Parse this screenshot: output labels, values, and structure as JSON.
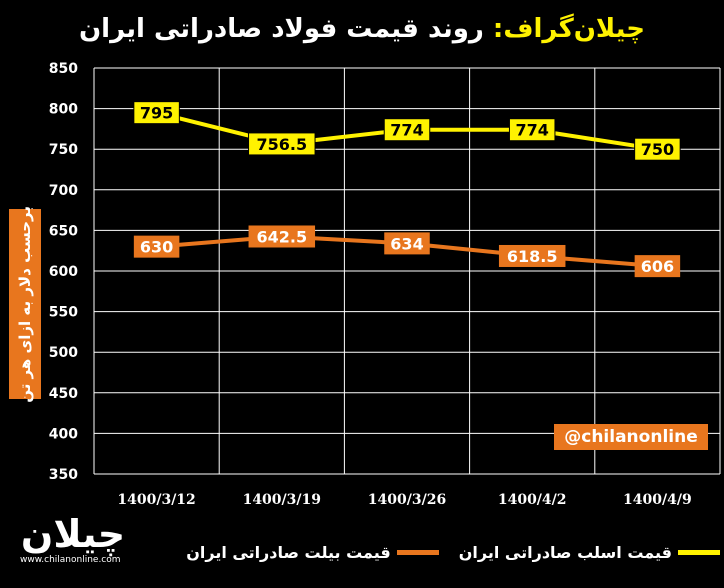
{
  "title": {
    "brand": "چیلان‌گراف:",
    "main": "روند قیمت فولاد صادراتی ایران"
  },
  "ylabel": "برحسب دلار به ازای هر تن",
  "handle": "@chilanonline",
  "logo": {
    "word": "چیلان",
    "url": "www.chilanonline.com"
  },
  "colors": {
    "background": "#000000",
    "grid": "#FFFFFF",
    "slab": "#FFF200",
    "billet": "#E8761E"
  },
  "chart_data": {
    "type": "line",
    "title": "روند قیمت فولاد صادراتی ایران",
    "x": [
      "1400/3/12",
      "1400/3/19",
      "1400/3/26",
      "1400/4/2",
      "1400/4/9"
    ],
    "ylabel": "برحسب دلار به ازای هر تن",
    "ylim": [
      350,
      850
    ],
    "yticks": [
      350,
      400,
      450,
      500,
      550,
      600,
      650,
      700,
      750,
      800,
      850
    ],
    "grid": true,
    "legend_position": "bottom",
    "series": [
      {
        "name": "قیمت اسلب صادراتی ایران",
        "color": "#FFF200",
        "values": [
          795,
          756.5,
          774,
          774,
          750
        ],
        "labels": [
          "795",
          "756.5",
          "774",
          "774",
          "750"
        ]
      },
      {
        "name": "قیمت بیلت صادراتی ایران",
        "color": "#E8761E",
        "values": [
          630,
          642.5,
          634,
          618.5,
          606
        ],
        "labels": [
          "630",
          "642.5",
          "634",
          "618.5",
          "606"
        ]
      }
    ]
  }
}
